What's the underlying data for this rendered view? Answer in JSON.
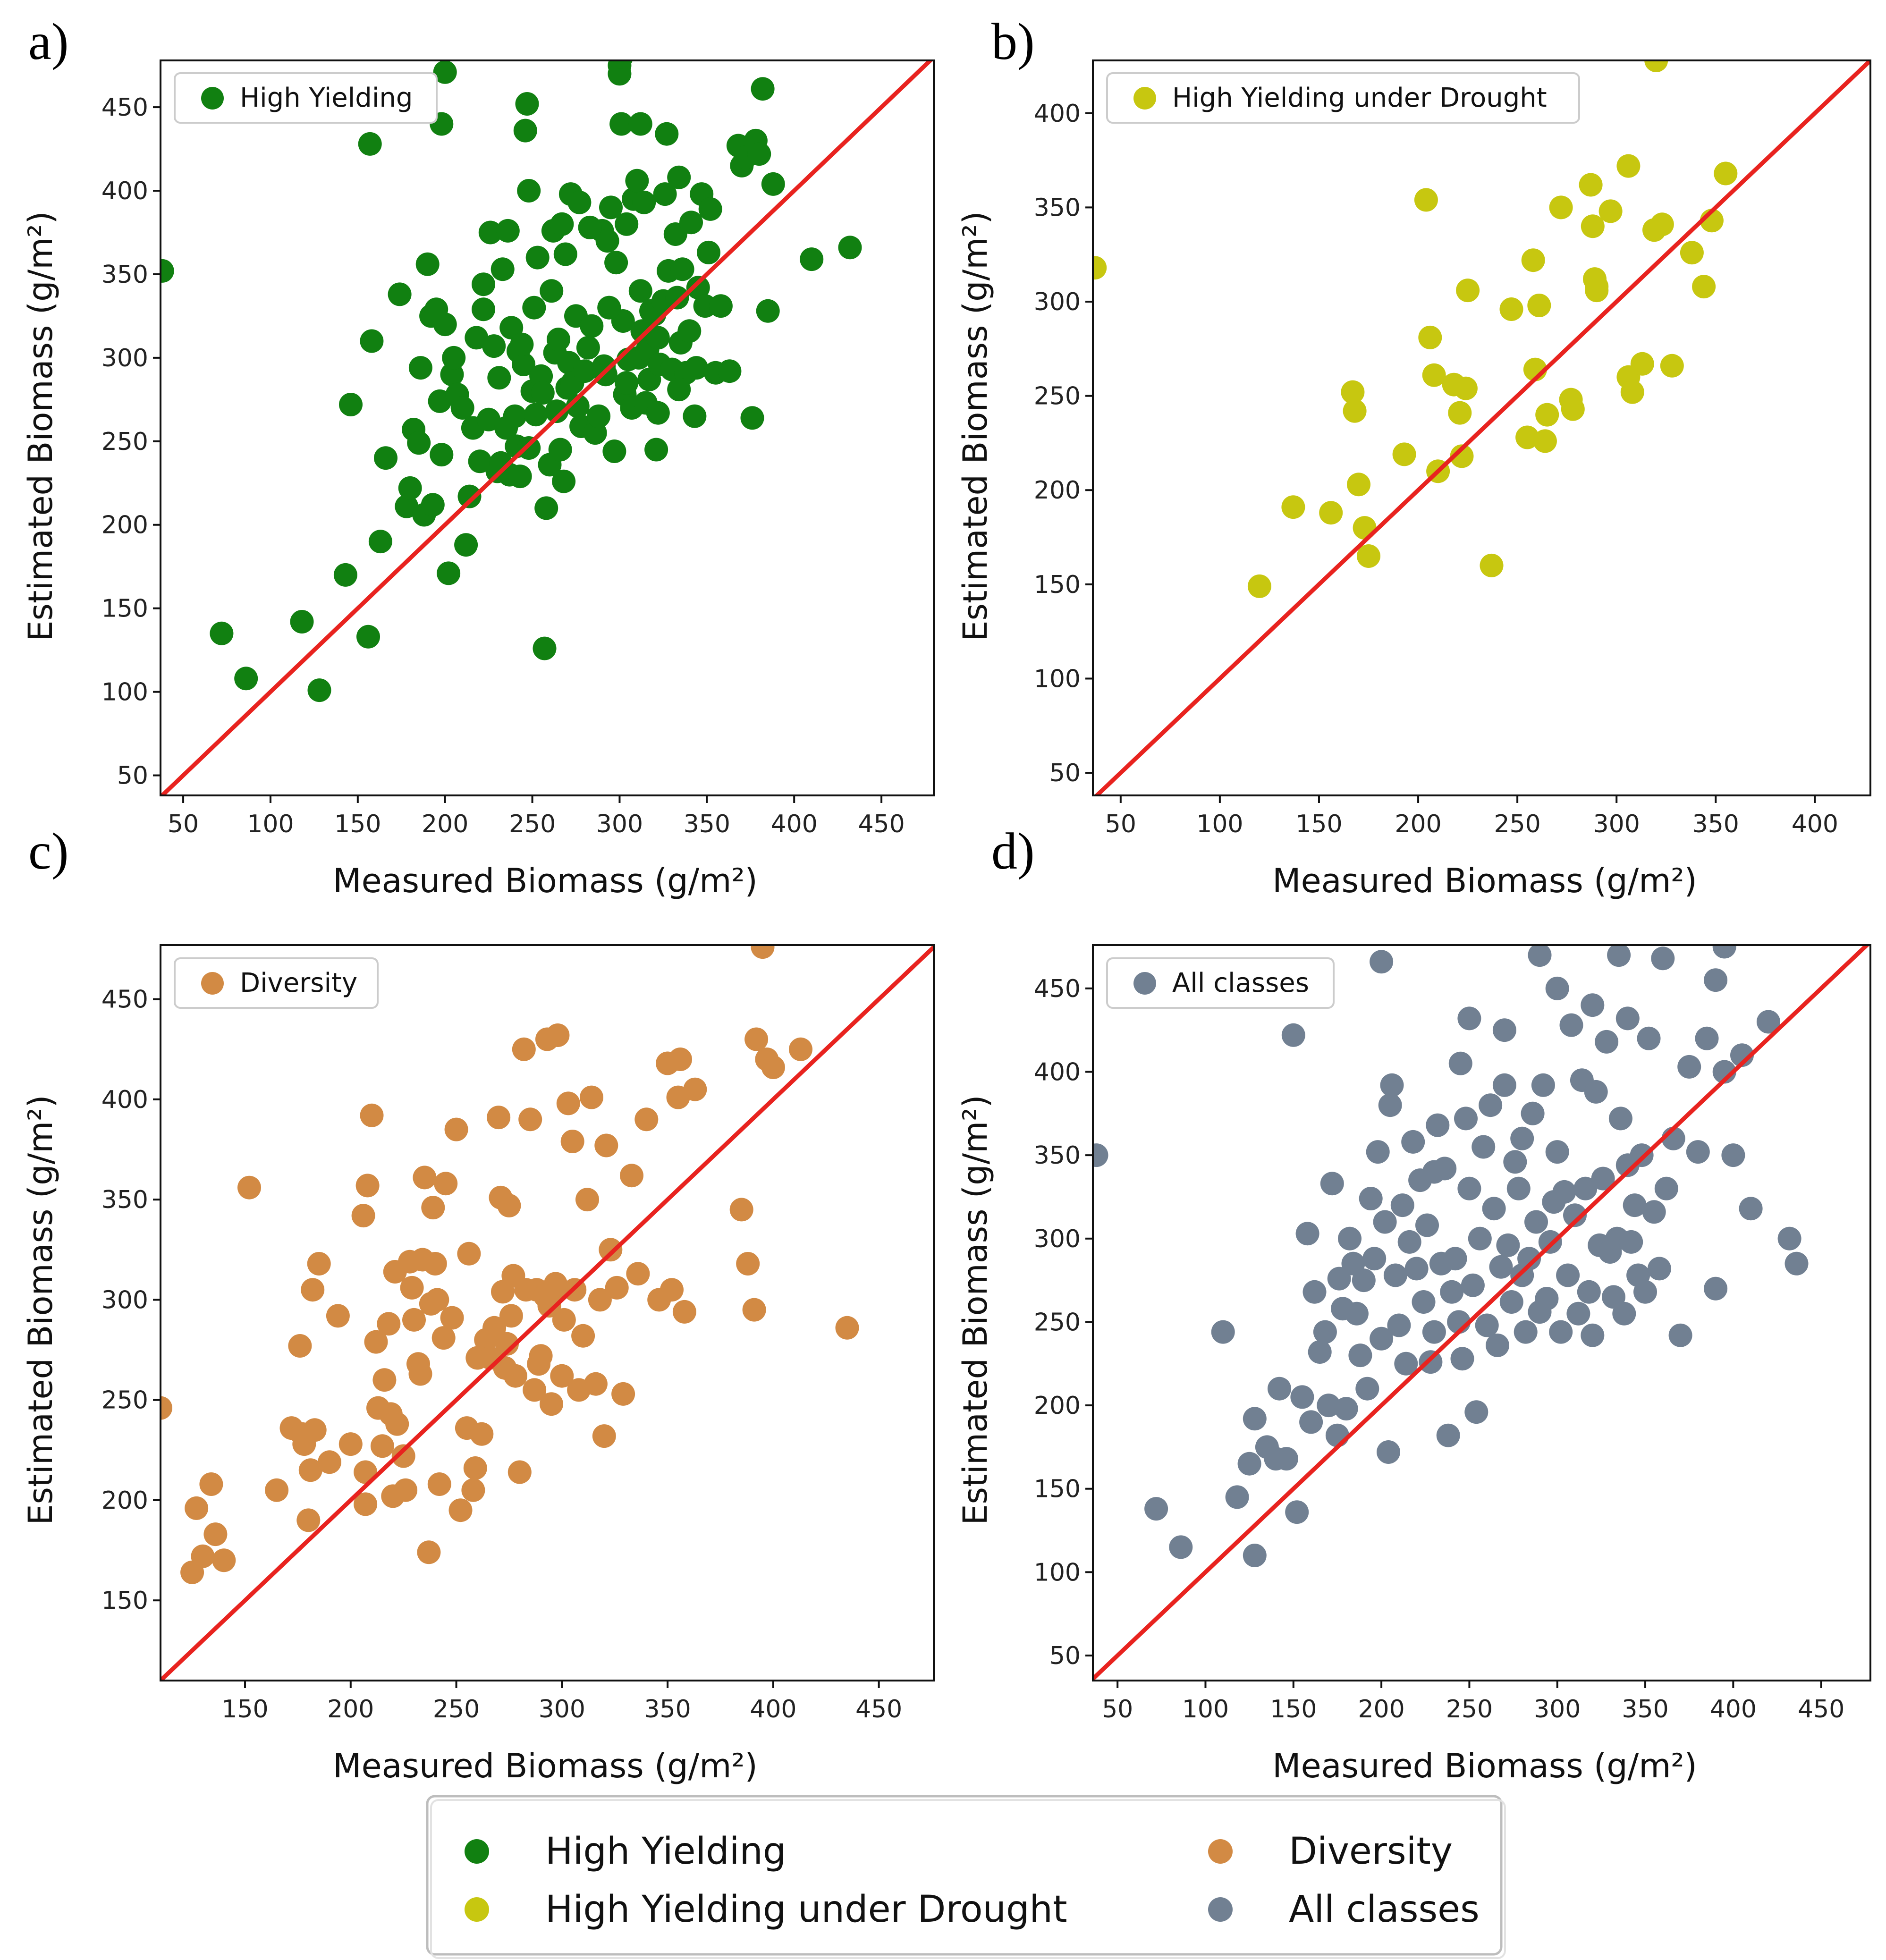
{
  "figure": {
    "common_xlabel": "Measured Biomass (g/m²)",
    "common_ylabel": "Estimated Biomass (g/m²)",
    "identity_line_color": "#e8231f",
    "bottom_legend": {
      "entries": [
        {
          "label": "High Yielding",
          "color": "#118011"
        },
        {
          "label": "High Yielding under Drought",
          "color": "#c7c710"
        },
        {
          "label": "Diversity",
          "color": "#d28a44"
        },
        {
          "label": "All classes",
          "color": "#718092"
        }
      ]
    }
  },
  "chart_data": [
    {
      "panel": "a)",
      "type": "scatter",
      "title": "",
      "legend": "High Yielding",
      "color": "#118011",
      "xlabel": "Measured Biomass (g/m²)",
      "ylabel": "Estimated Biomass (g/m²)",
      "xlim": [
        37,
        480
      ],
      "ylim": [
        38,
        478
      ],
      "xticks": [
        50,
        100,
        150,
        200,
        250,
        300,
        350,
        400,
        450
      ],
      "yticks": [
        50,
        100,
        150,
        200,
        250,
        300,
        350,
        400,
        450
      ],
      "x": [
        38,
        72,
        86,
        118,
        128,
        146,
        143,
        156,
        158,
        157,
        163,
        166,
        174,
        178,
        180,
        182,
        185,
        186,
        188,
        190,
        192,
        193,
        195,
        197,
        198,
        200,
        200,
        202,
        204,
        205,
        207,
        210,
        212,
        214,
        216,
        218,
        220,
        222,
        222,
        225,
        226,
        228,
        230,
        231,
        232,
        233,
        235,
        236,
        237,
        238,
        240,
        241,
        242,
        243,
        245,
        246,
        247,
        248,
        250,
        251,
        252,
        253,
        255,
        256,
        257,
        258,
        260,
        261,
        262,
        263,
        264,
        265,
        266,
        267,
        268,
        269,
        270,
        271,
        272,
        273,
        275,
        276,
        277,
        278,
        280,
        282,
        284,
        286,
        288,
        290,
        291,
        292,
        293,
        294,
        295,
        297,
        298,
        300,
        301,
        302,
        303,
        304,
        305,
        307,
        308,
        310,
        311,
        312,
        313,
        314,
        315,
        316,
        317,
        318,
        320,
        321,
        322,
        323,
        325,
        326,
        327,
        328,
        330,
        332,
        333,
        334,
        335,
        336,
        338,
        340,
        341,
        343,
        344,
        345,
        347,
        349,
        351,
        355,
        358,
        363,
        368,
        370,
        372,
        376,
        378,
        380,
        382,
        385,
        388,
        410,
        432,
        198,
        244,
        248,
        283,
        294,
        300,
        301,
        304,
        312,
        322,
        334,
        352
      ],
      "y": [
        352,
        135,
        108,
        142,
        101,
        272,
        170,
        133,
        310,
        428,
        190,
        240,
        338,
        211,
        222,
        257,
        249,
        294,
        206,
        356,
        325,
        212,
        329,
        274,
        242,
        320,
        471,
        171,
        290,
        300,
        278,
        270,
        188,
        217,
        258,
        312,
        238,
        329,
        344,
        263,
        375,
        307,
        232,
        288,
        237,
        353,
        258,
        376,
        230,
        318,
        265,
        247,
        304,
        229,
        296,
        436,
        452,
        246,
        280,
        330,
        266,
        360,
        289,
        279,
        126,
        210,
        236,
        340,
        376,
        303,
        268,
        311,
        245,
        380,
        226,
        362,
        282,
        297,
        398,
        285,
        325,
        271,
        393,
        259,
        292,
        306,
        319,
        255,
        265,
        376,
        295,
        290,
        370,
        330,
        390,
        244,
        357,
        475,
        440,
        322,
        278,
        380,
        299,
        270,
        395,
        406,
        300,
        340,
        316,
        393,
        273,
        305,
        287,
        328,
        326,
        245,
        267,
        296,
        334,
        398,
        434,
        352,
        293,
        374,
        336,
        408,
        309,
        353,
        291,
        316,
        381,
        265,
        294,
        342,
        398,
        331,
        363,
        291,
        331,
        292,
        427,
        415,
        420,
        264,
        430,
        422,
        461,
        328,
        404,
        359,
        366,
        440,
        308,
        400,
        378,
        330,
        470,
        480,
        285,
        440,
        312,
        281,
        389
      ]
    },
    {
      "panel": "b)",
      "type": "scatter",
      "title": "",
      "legend": "High Yielding under Drought",
      "color": "#c7c710",
      "xlabel": "Measured Biomass (g/m²)",
      "ylabel": "Estimated Biomass (g/m²)",
      "xlim": [
        36,
        428
      ],
      "ylim": [
        38,
        428
      ],
      "xticks": [
        50,
        100,
        150,
        200,
        250,
        300,
        350,
        400
      ],
      "yticks": [
        50,
        100,
        150,
        200,
        250,
        300,
        350,
        400
      ],
      "x": [
        37,
        120,
        137,
        156,
        167,
        168,
        170,
        173,
        175,
        193,
        204,
        206,
        208,
        210,
        218,
        221,
        222,
        224,
        225,
        237,
        247,
        255,
        258,
        259,
        261,
        264,
        265,
        272,
        277,
        278,
        287,
        288,
        289,
        290,
        290,
        297,
        306,
        306,
        308,
        313,
        319,
        323,
        328,
        338,
        344,
        348,
        355,
        320
      ],
      "y": [
        318,
        149,
        191,
        188,
        252,
        242,
        203,
        180,
        165,
        219,
        354,
        281,
        261,
        210,
        256,
        241,
        218,
        254,
        306,
        160,
        296,
        228,
        322,
        264,
        298,
        226,
        240,
        350,
        248,
        243,
        362,
        340,
        312,
        308,
        306,
        348,
        372,
        260,
        252,
        267,
        338,
        341,
        266,
        326,
        308,
        343,
        368,
        428
      ]
    },
    {
      "panel": "c)",
      "type": "scatter",
      "title": "",
      "legend": "Diversity",
      "color": "#d28a44",
      "xlabel": "Measured Biomass (g/m²)",
      "ylabel": "Estimated Biomass (g/m²)",
      "xlim": [
        110,
        476
      ],
      "ylim": [
        110,
        477
      ],
      "xticks": [
        150,
        200,
        250,
        300,
        350,
        400,
        450
      ],
      "yticks": [
        150,
        200,
        250,
        300,
        350,
        400,
        450
      ],
      "x": [
        110,
        125,
        127,
        130,
        134,
        136,
        140,
        152,
        165,
        172,
        176,
        177,
        178,
        180,
        181,
        182,
        183,
        185,
        190,
        194,
        200,
        206,
        207,
        207,
        208,
        210,
        212,
        213,
        215,
        216,
        218,
        219,
        220,
        221,
        222,
        225,
        226,
        228,
        229,
        230,
        232,
        233,
        234,
        235,
        237,
        238,
        239,
        240,
        241,
        242,
        244,
        245,
        248,
        250,
        252,
        255,
        256,
        258,
        259,
        260,
        262,
        264,
        266,
        268,
        270,
        271,
        272,
        273,
        274,
        275,
        276,
        277,
        278,
        280,
        282,
        283,
        285,
        287,
        288,
        289,
        290,
        292,
        293,
        294,
        295,
        296,
        297,
        298,
        300,
        301,
        303,
        305,
        306,
        308,
        310,
        312,
        314,
        316,
        318,
        320,
        321,
        323,
        326,
        329,
        333,
        336,
        340,
        346,
        350,
        352,
        355,
        356,
        358,
        363,
        385,
        388,
        391,
        392,
        395,
        397,
        400,
        413,
        435
      ],
      "y": [
        246,
        164,
        196,
        172,
        208,
        183,
        170,
        356,
        205,
        236,
        277,
        233,
        228,
        190,
        215,
        305,
        235,
        318,
        219,
        292,
        228,
        342,
        198,
        214,
        357,
        392,
        279,
        246,
        227,
        260,
        288,
        243,
        202,
        314,
        238,
        222,
        205,
        319,
        306,
        290,
        268,
        263,
        320,
        361,
        174,
        298,
        346,
        318,
        300,
        208,
        281,
        358,
        291,
        385,
        195,
        236,
        323,
        205,
        216,
        271,
        233,
        280,
        271,
        286,
        391,
        351,
        304,
        266,
        278,
        347,
        292,
        312,
        262,
        214,
        425,
        305,
        390,
        255,
        305,
        268,
        272,
        302,
        430,
        297,
        248,
        305,
        308,
        432,
        262,
        290,
        398,
        379,
        305,
        255,
        282,
        350,
        401,
        258,
        300,
        232,
        377,
        325,
        306,
        253,
        362,
        313,
        390,
        300,
        418,
        305,
        401,
        420,
        294,
        405,
        345,
        318,
        295,
        430,
        476,
        420,
        416,
        425,
        286
      ]
    },
    {
      "panel": "d)",
      "type": "scatter",
      "title": "",
      "legend": "All classes",
      "color": "#718092",
      "xlabel": "Measured Biomass (g/m²)",
      "ylabel": "Estimated Biomass (g/m²)",
      "xlim": [
        36,
        478
      ],
      "ylim": [
        35,
        476
      ],
      "xticks": [
        50,
        100,
        150,
        200,
        250,
        300,
        350,
        400,
        450
      ],
      "yticks": [
        50,
        100,
        150,
        200,
        250,
        300,
        350,
        400,
        450
      ],
      "x": [
        38,
        72,
        86,
        110,
        118,
        125,
        128,
        128,
        135,
        140,
        142,
        146,
        150,
        152,
        155,
        158,
        160,
        162,
        165,
        168,
        170,
        172,
        175,
        176,
        178,
        180,
        182,
        184,
        186,
        188,
        190,
        192,
        194,
        196,
        198,
        200,
        202,
        204,
        206,
        208,
        210,
        212,
        214,
        216,
        218,
        220,
        222,
        224,
        226,
        228,
        230,
        232,
        234,
        236,
        238,
        240,
        242,
        244,
        246,
        248,
        250,
        252,
        254,
        256,
        258,
        260,
        262,
        264,
        266,
        268,
        270,
        272,
        274,
        276,
        278,
        280,
        282,
        284,
        286,
        288,
        290,
        292,
        294,
        296,
        298,
        300,
        302,
        304,
        306,
        308,
        310,
        312,
        314,
        316,
        318,
        320,
        322,
        324,
        326,
        328,
        330,
        332,
        334,
        336,
        338,
        340,
        342,
        344,
        346,
        348,
        350,
        352,
        355,
        358,
        362,
        366,
        370,
        375,
        380,
        385,
        390,
        395,
        400,
        405,
        410,
        420,
        432,
        436,
        200,
        205,
        230,
        245,
        250,
        270,
        280,
        290,
        300,
        320,
        335,
        340,
        360,
        390,
        395
      ],
      "y": [
        350,
        138,
        115,
        244,
        145,
        165,
        110,
        192,
        175,
        168,
        210,
        168,
        422,
        136,
        205,
        303,
        190,
        268,
        232,
        244,
        200,
        333,
        182,
        276,
        258,
        198,
        300,
        285,
        255,
        230,
        275,
        210,
        324,
        288,
        352,
        240,
        310,
        172,
        392,
        278,
        248,
        320,
        225,
        298,
        358,
        282,
        335,
        262,
        308,
        226,
        244,
        368,
        285,
        342,
        182,
        268,
        288,
        250,
        228,
        372,
        330,
        272,
        196,
        300,
        355,
        248,
        380,
        318,
        236,
        283,
        392,
        296,
        262,
        346,
        330,
        278,
        244,
        288,
        375,
        310,
        256,
        392,
        264,
        298,
        322,
        352,
        244,
        328,
        278,
        428,
        314,
        255,
        395,
        330,
        268,
        242,
        388,
        296,
        336,
        418,
        292,
        265,
        300,
        372,
        255,
        344,
        298,
        320,
        278,
        350,
        268,
        420,
        316,
        282,
        330,
        360,
        242,
        403,
        352,
        420,
        270,
        400,
        350,
        410,
        318,
        430,
        300,
        285,
        466,
        380,
        340,
        405,
        432,
        425,
        360,
        470,
        450,
        440,
        470,
        432,
        468,
        455,
        475
      ]
    }
  ]
}
